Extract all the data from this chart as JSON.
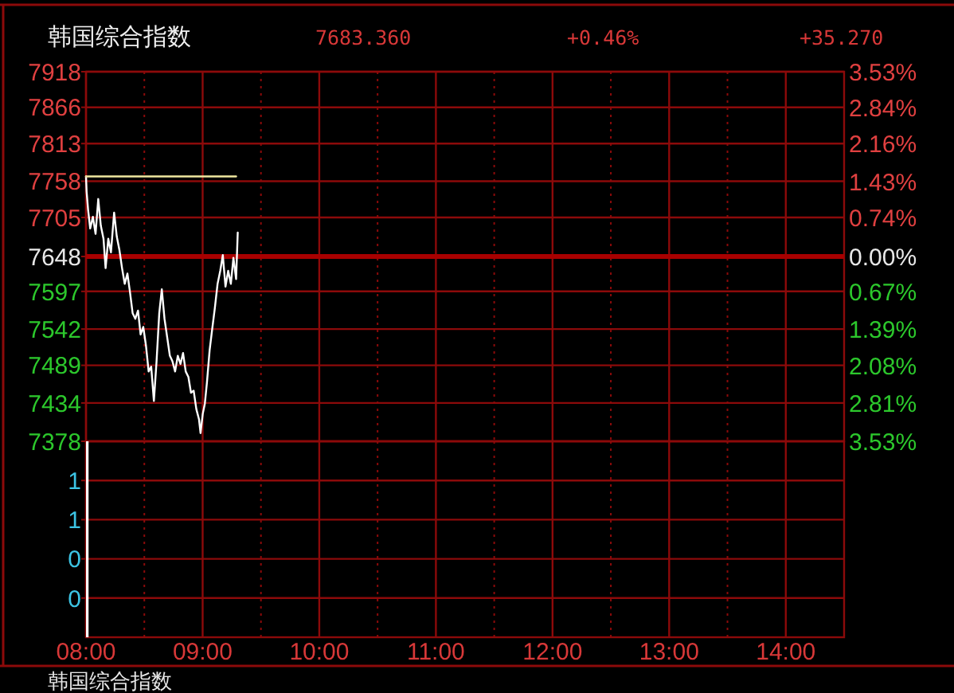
{
  "chart_data": [
    {
      "type": "line",
      "title": "韩国综合指数",
      "annotations": [
        "7683.360",
        "+0.46%",
        "+35.270"
      ],
      "series": [
        {
          "color": "#ffffff",
          "x": [
            8,
            8.005,
            8.018,
            8.036,
            8.059,
            8.082,
            8.105,
            8.127,
            8.15,
            8.168,
            8.191,
            8.214,
            8.241,
            8.264,
            8.286,
            8.309,
            8.332,
            8.355,
            8.377,
            8.4,
            8.423,
            8.446,
            8.468,
            8.491,
            8.514,
            8.537,
            8.559,
            8.582,
            8.605,
            8.628,
            8.65,
            8.673,
            8.696,
            8.719,
            8.741,
            8.764,
            8.787,
            8.81,
            8.832,
            8.855,
            8.878,
            8.9,
            8.923,
            8.946,
            8.969,
            8.982,
            9.001,
            9.019,
            9.037,
            9.06,
            9.082,
            9.105,
            9.128,
            9.151,
            9.173,
            9.196,
            9.219,
            9.242,
            9.264,
            9.287,
            9.301
          ],
          "values": [
            7765,
            7743,
            7716,
            7689,
            7706,
            7681,
            7732,
            7693,
            7674,
            7631,
            7674,
            7654,
            7712,
            7677,
            7658,
            7631,
            7608,
            7623,
            7596,
            7565,
            7557,
            7569,
            7534,
            7545,
            7518,
            7480,
            7487,
            7437,
            7495,
            7565,
            7600,
            7557,
            7530,
            7503,
            7495,
            7480,
            7503,
            7491,
            7507,
            7480,
            7472,
            7449,
            7452,
            7425,
            7410,
            7390,
            7418,
            7433,
            7464,
            7511,
            7542,
            7573,
            7608,
            7627,
            7650,
            7604,
            7627,
            7608,
            7646,
            7615,
            7683
          ]
        },
        {
          "color": "#f0e8a0",
          "x": [
            8,
            9.287
          ],
          "values": [
            7765,
            7765
          ]
        }
      ],
      "xlim": [
        8,
        14.5
      ],
      "xticks": [
        {
          "value": 8,
          "label": null
        },
        {
          "value": 8.5,
          "label": null
        },
        {
          "value": 9,
          "label": null
        },
        {
          "value": 9.5,
          "label": null
        },
        {
          "value": 10,
          "label": null
        },
        {
          "value": 10.5,
          "label": null
        },
        {
          "value": 11,
          "label": null
        },
        {
          "value": 11.5,
          "label": null
        },
        {
          "value": 12,
          "label": null
        },
        {
          "value": 12.5,
          "label": null
        },
        {
          "value": 13,
          "label": null
        },
        {
          "value": 13.5,
          "label": null
        },
        {
          "value": 14,
          "label": null
        }
      ],
      "ylim": [
        7378,
        7918
      ],
      "yticks": [
        7918,
        7866,
        7813,
        7758,
        7705,
        7648,
        7597,
        7542,
        7489,
        7434,
        7378
      ],
      "y2lim": [
        -3.53,
        3.53
      ],
      "y2ticks": [
        {
          "value": 3.53,
          "label": "3.53%"
        },
        {
          "value": 2.84,
          "label": "2.84%"
        },
        {
          "value": 2.16,
          "label": "2.16%"
        },
        {
          "value": 1.43,
          "label": "1.43%"
        },
        {
          "value": 0.74,
          "label": "0.74%"
        },
        {
          "value": 0,
          "label": "0.00%"
        },
        {
          "value": -0.67,
          "label": "0.67%"
        },
        {
          "value": -1.39,
          "label": "1.39%"
        },
        {
          "value": -2.08,
          "label": "2.08%"
        },
        {
          "value": -2.81,
          "label": "2.81%"
        },
        {
          "value": -3.53,
          "label": "3.53%"
        }
      ],
      "ref_lines": [
        {
          "axis": "y",
          "value": 7648,
          "color": "#a80000"
        }
      ],
      "tick_labels": "y",
      "grid": true
    },
    {
      "type": "bar",
      "annotations": [
        "韩国综合指数"
      ],
      "x": [
        8
      ],
      "values": [
        1
      ],
      "color": "#ffffff",
      "xlim": [
        8,
        14.5
      ],
      "xticks": [
        {
          "value": 8,
          "label": "08:00"
        },
        {
          "value": 8.5,
          "label": null
        },
        {
          "value": 9,
          "label": "09:00"
        },
        {
          "value": 9.5,
          "label": null
        },
        {
          "value": 10,
          "label": "10:00"
        },
        {
          "value": 10.5,
          "label": null
        },
        {
          "value": 11,
          "label": "11:00"
        },
        {
          "value": 11.5,
          "label": null
        },
        {
          "value": 12,
          "label": "12:00"
        },
        {
          "value": 12.5,
          "label": null
        },
        {
          "value": 13,
          "label": "13:00"
        },
        {
          "value": 13.5,
          "label": null
        },
        {
          "value": 14,
          "label": "14:00"
        }
      ],
      "ylim": [
        0,
        1
      ],
      "yticks": [
        {
          "value": 0.8,
          "label": "1"
        },
        {
          "value": 0.6,
          "label": "1"
        },
        {
          "value": 0.4,
          "label": "0"
        },
        {
          "value": 0.2,
          "label": "0"
        }
      ],
      "grid": true
    }
  ]
}
